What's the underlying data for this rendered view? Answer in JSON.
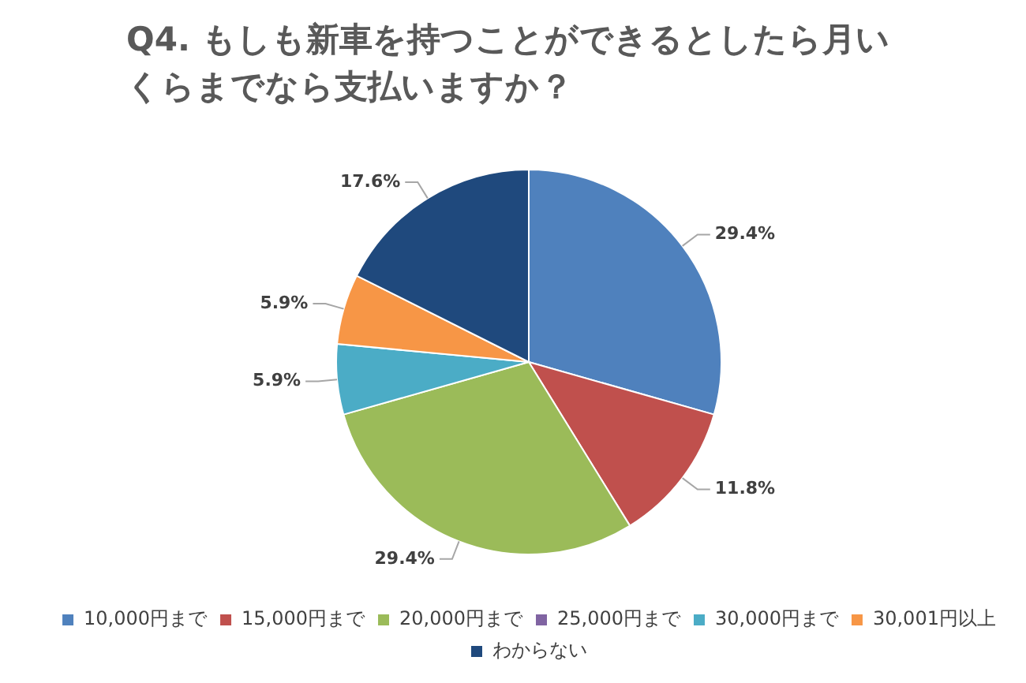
{
  "chart_data": {
    "type": "pie",
    "title": "Q4. もしも新車を持つことができるとしたら月いくらまでなら支払いますか？",
    "categories": [
      "10,000円まで",
      "15,000円まで",
      "20,000円まで",
      "25,000円まで",
      "30,000円まで",
      "30,001円以上",
      "わからない"
    ],
    "values": [
      29.4,
      11.8,
      29.4,
      0,
      5.9,
      5.9,
      17.6
    ],
    "colors": [
      "#4f81bd",
      "#c0504d",
      "#9bbb59",
      "#8064a2",
      "#4bacc6",
      "#f79646",
      "#1f497d"
    ],
    "value_labels": [
      "29.4%",
      "11.8%",
      "29.4%",
      null,
      "5.9%",
      "5.9%",
      "17.6%"
    ],
    "legend": "bottom"
  }
}
